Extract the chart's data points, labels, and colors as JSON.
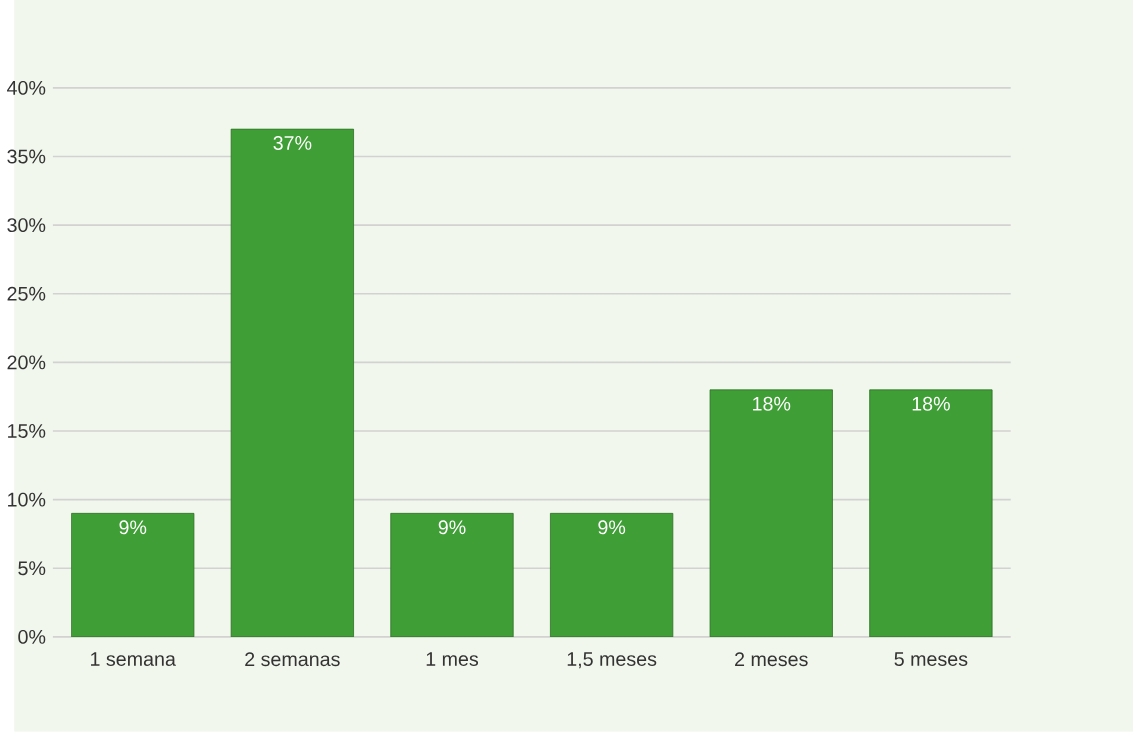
{
  "chart_data": {
    "type": "bar",
    "categories": [
      "1 semana",
      "2 semanas",
      "1 mes",
      "1,5 meses",
      "2 meses",
      "5 meses"
    ],
    "values": [
      9,
      37,
      9,
      9,
      18,
      18
    ],
    "value_labels": [
      "9%",
      "37%",
      "9%",
      "9%",
      "18%",
      "18%"
    ],
    "color": "#3f9e35",
    "ylim": [
      0,
      40
    ],
    "yticks": [
      {
        "value": 0,
        "label": "0%"
      },
      {
        "value": 5,
        "label": "5%"
      },
      {
        "value": 10,
        "label": "10%"
      },
      {
        "value": 15,
        "label": "15%"
      },
      {
        "value": 20,
        "label": "20%"
      },
      {
        "value": 25,
        "label": "25%"
      },
      {
        "value": 30,
        "label": "30%"
      },
      {
        "value": 35,
        "label": "35%"
      },
      {
        "value": 40,
        "label": "40%"
      }
    ],
    "grid": "y"
  }
}
